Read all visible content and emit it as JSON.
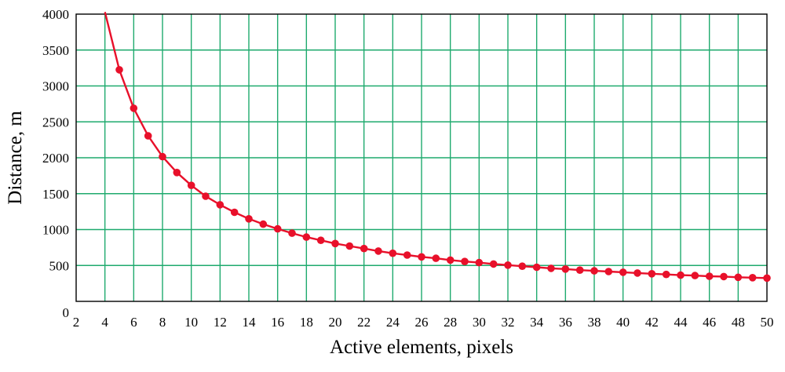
{
  "chart_data": {
    "type": "line",
    "title": "",
    "xlabel": "Active elements, pixels",
    "ylabel": "Distance, m",
    "xlim": [
      2,
      50
    ],
    "ylim": [
      0,
      4000
    ],
    "x_ticks": [
      2,
      4,
      6,
      8,
      10,
      12,
      14,
      16,
      18,
      20,
      22,
      24,
      26,
      28,
      30,
      32,
      34,
      36,
      38,
      40,
      42,
      44,
      46,
      48,
      50
    ],
    "y_ticks": [
      0,
      500,
      1000,
      1500,
      2000,
      2500,
      3000,
      3500,
      4000
    ],
    "x_tick_labels": [
      "2",
      "4",
      "6",
      "8",
      "10",
      "12",
      "14",
      "16",
      "18",
      "20",
      "22",
      "24",
      "26",
      "28",
      "30",
      "32",
      "34",
      "36",
      "38",
      "40",
      "42",
      "44",
      "46",
      "48",
      "50"
    ],
    "y_tick_labels": [
      "0",
      "500",
      "1000",
      "1500",
      "2000",
      "2500",
      "3000",
      "3500",
      "4000"
    ],
    "grid": true,
    "legend": "none",
    "series": [
      {
        "x": [
          4,
          5,
          6,
          7,
          8,
          9,
          10,
          11,
          12,
          13,
          14,
          15,
          16,
          17,
          18,
          19,
          20,
          21,
          22,
          23,
          24,
          25,
          26,
          27,
          28,
          29,
          30,
          31,
          32,
          33,
          34,
          35,
          36,
          37,
          38,
          39,
          40,
          41,
          42,
          43,
          44,
          45,
          46,
          47,
          48,
          49,
          50
        ],
        "values": [
          4030,
          3225,
          2690,
          2305,
          2015,
          1795,
          1615,
          1465,
          1345,
          1240,
          1150,
          1075,
          1010,
          950,
          895,
          850,
          805,
          770,
          735,
          700,
          670,
          645,
          620,
          600,
          575,
          555,
          540,
          520,
          505,
          490,
          475,
          460,
          450,
          435,
          425,
          415,
          405,
          395,
          385,
          375,
          365,
          360,
          350,
          345,
          335,
          330,
          325
        ],
        "color": "#e8102a",
        "marker": "circle"
      }
    ],
    "colors": {
      "grid": "#1faa6e",
      "axes": "#000000",
      "line": "#e8102a"
    }
  }
}
